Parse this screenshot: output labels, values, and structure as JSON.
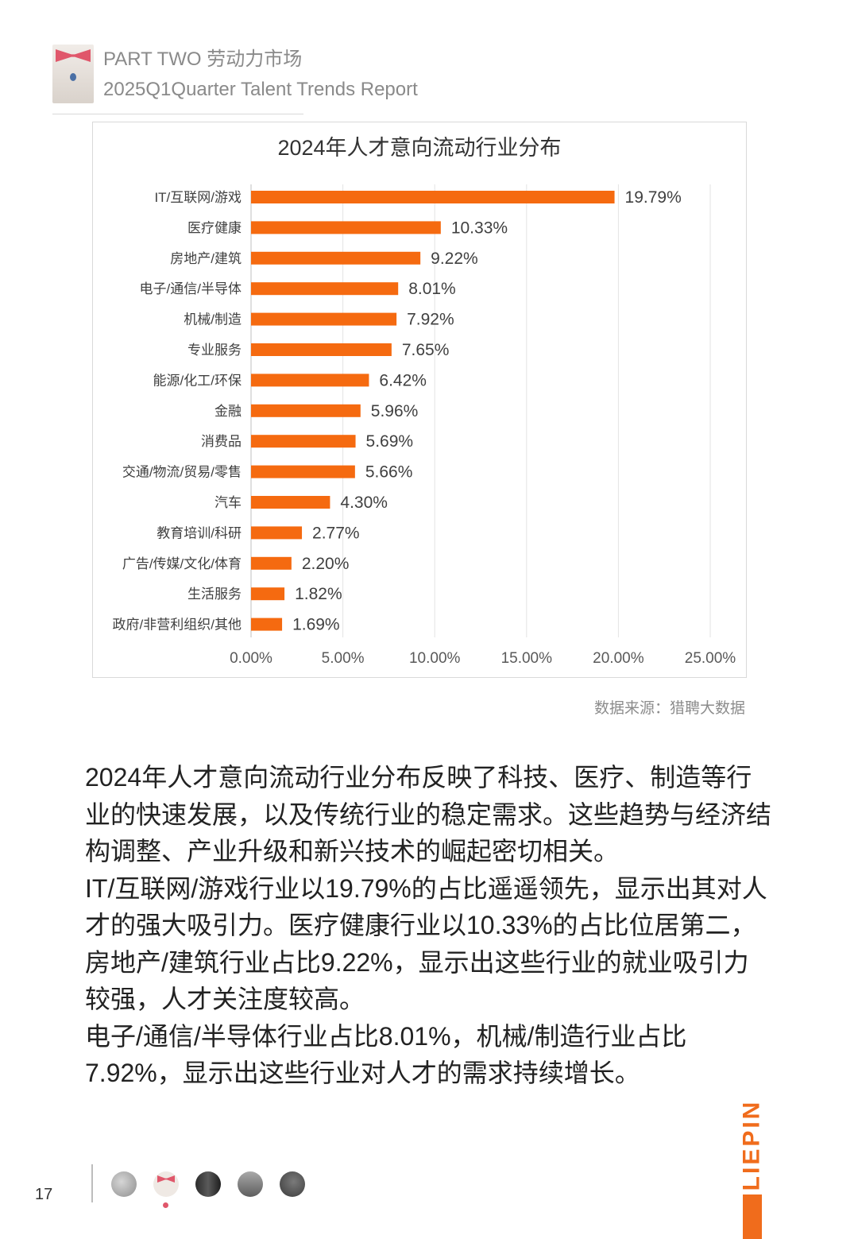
{
  "header": {
    "line1": "PART TWO 劳动力市场",
    "line2": "2025Q1Quarter Talent Trends Report"
  },
  "chart_data": {
    "type": "bar",
    "orientation": "horizontal",
    "title": "2024年人才意向流动行业分布",
    "categories": [
      "IT/互联网/游戏",
      "医疗健康",
      "房地产/建筑",
      "电子/通信/半导体",
      "机械/制造",
      "专业服务",
      "能源/化工/环保",
      "金融",
      "消费品",
      "交通/物流/贸易/零售",
      "汽车",
      "教育培训/科研",
      "广告/传媒/文化/体育",
      "生活服务",
      "政府/非营利组织/其他"
    ],
    "values": [
      19.79,
      10.33,
      9.22,
      8.01,
      7.92,
      7.65,
      6.42,
      5.96,
      5.69,
      5.66,
      4.3,
      2.77,
      2.2,
      1.82,
      1.69
    ],
    "data_labels": [
      "19.79%",
      "10.33%",
      "9.22%",
      "8.01%",
      "7.92%",
      "7.65%",
      "6.42%",
      "5.96%",
      "5.69%",
      "5.66%",
      "4.30%",
      "2.77%",
      "2.20%",
      "1.82%",
      "1.69%"
    ],
    "xlim": [
      0,
      25
    ],
    "x_ticks": [
      "0.00%",
      "5.00%",
      "10.00%",
      "15.00%",
      "20.00%",
      "25.00%"
    ],
    "bar_color": "#f56a10",
    "grid": true,
    "legend": "none"
  },
  "source": "数据来源：猎聘大数据",
  "body": {
    "p1": "2024年人才意向流动行业分布反映了科技、医疗、制造等行业的快速发展，以及传统行业的稳定需求。这些趋势与经济结构调整、产业升级和新兴技术的崛起密切相关。",
    "p2": "IT/互联网/游戏行业以19.79%的占比遥遥领先，显示出其对人才的强大吸引力。医疗健康行业以10.33%的占比位居第二，房地产/建筑行业占比9.22%，显示出这些行业的就业吸引力较强，人才关注度较高。",
    "p3": "电子/通信/半导体行业占比8.01%，机械/制造行业占比7.92%，显示出这些行业对人才的需求持续增长。"
  },
  "footer": {
    "page_number": "17",
    "brand": "LIEPIN"
  },
  "colors": {
    "accent": "#f06c1c",
    "bar": "#f56a10"
  }
}
